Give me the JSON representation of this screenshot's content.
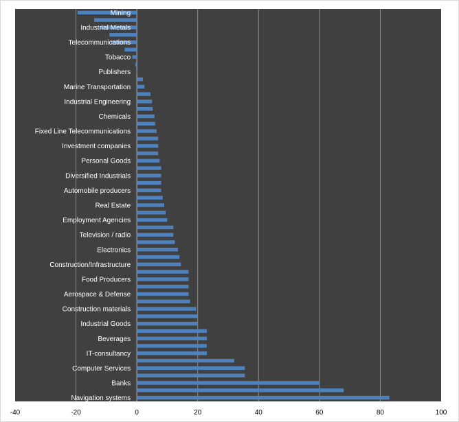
{
  "chart_data": {
    "type": "bar",
    "orientation": "horizontal",
    "title": "",
    "xlabel": "",
    "ylabel": "",
    "xlim": [
      -40,
      100
    ],
    "x_ticks": [
      -40,
      -20,
      0,
      20,
      40,
      60,
      80,
      100
    ],
    "grid": true,
    "legend": "none",
    "colors": {
      "bar": "#4f81bd",
      "plot_background": "#404040",
      "gridline": "#8c8c8c",
      "label": "#ffffff"
    },
    "labeled_categories": [
      "Mining",
      "Industrial Metals",
      "Telecommunications",
      "Tobacco",
      "Publishers",
      "Marine Transportation",
      "Industrial Engineering",
      "Chemicals",
      "Fixed Line Telecommunications",
      "Investment companies",
      "Personal Goods",
      "Diversified Industrials",
      "Automobile producers",
      "Real Estate",
      "Employment Agencies",
      "Television / radio",
      "Electronics",
      "Construction/Infrastructure",
      "Food Producers",
      "Aerospace & Defense",
      "Construction materials",
      "Industrial Goods",
      "Beverages",
      "IT-consultancy",
      "Computer Services",
      "Banks",
      "Navigation systems"
    ],
    "values_top_to_bottom": [
      -19.5,
      -14,
      -12,
      -9,
      -8.5,
      -4,
      -1.5,
      -0.5,
      0.2,
      2,
      2.5,
      4.5,
      5,
      5.2,
      5.8,
      6,
      6.5,
      7,
      7,
      7,
      7.5,
      8,
      8,
      8,
      8,
      8.5,
      9,
      9.5,
      10,
      12,
      12,
      12.5,
      13.5,
      14,
      14.5,
      17,
      17,
      17,
      17,
      17.5,
      19.5,
      20,
      20,
      23,
      23,
      23,
      23,
      32,
      35.5,
      35.5,
      60,
      68,
      83
    ]
  }
}
